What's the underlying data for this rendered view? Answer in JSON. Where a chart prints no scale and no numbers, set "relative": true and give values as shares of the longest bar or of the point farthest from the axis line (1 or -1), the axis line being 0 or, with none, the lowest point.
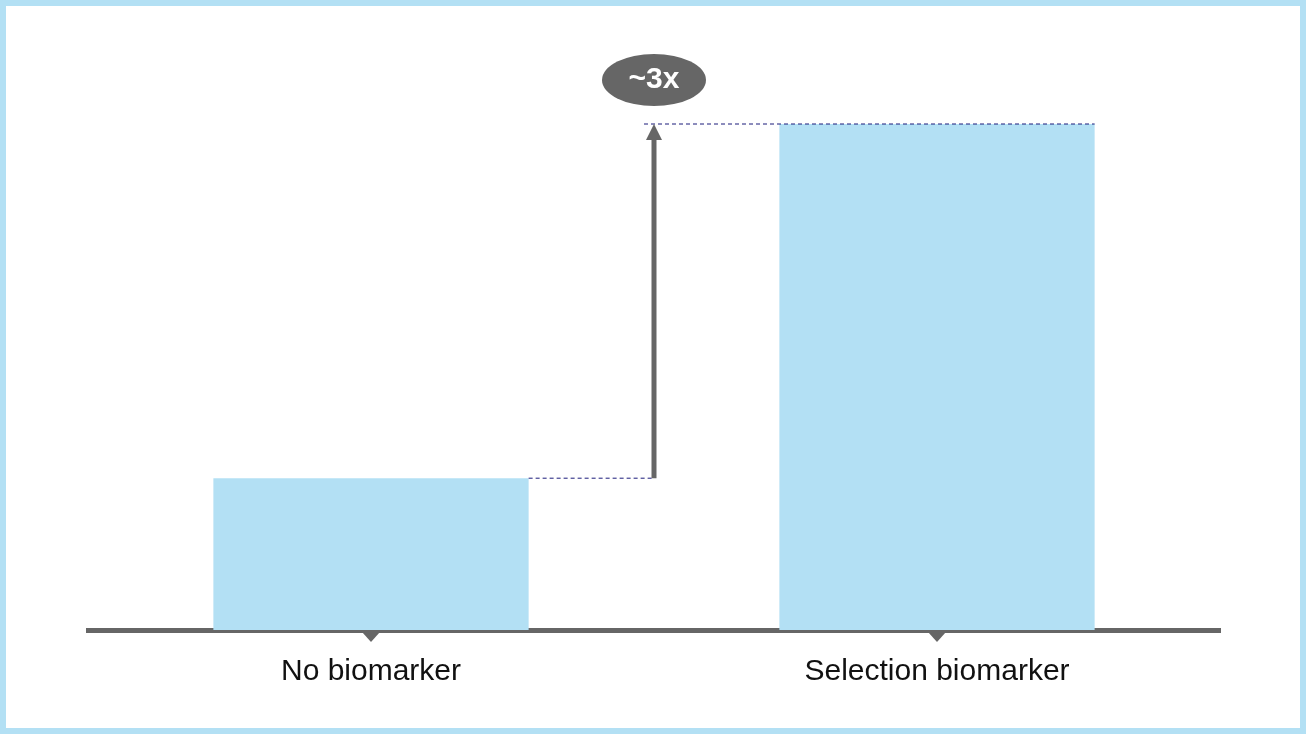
{
  "chart_data": {
    "type": "bar",
    "relative": true,
    "categories": [
      "No biomarker",
      "Selection biomarker"
    ],
    "values": [
      0.3,
      1
    ],
    "color": "#b3e0f4",
    "annotations": [
      "~3x"
    ],
    "ref_lines": [
      {
        "axis": "y",
        "value": 0.3,
        "line_style": "dashed",
        "color": "#1a1a7a"
      },
      {
        "axis": "y",
        "value": 1,
        "line_style": "dashed",
        "color": "#1a1a7a"
      }
    ],
    "grid": false
  }
}
